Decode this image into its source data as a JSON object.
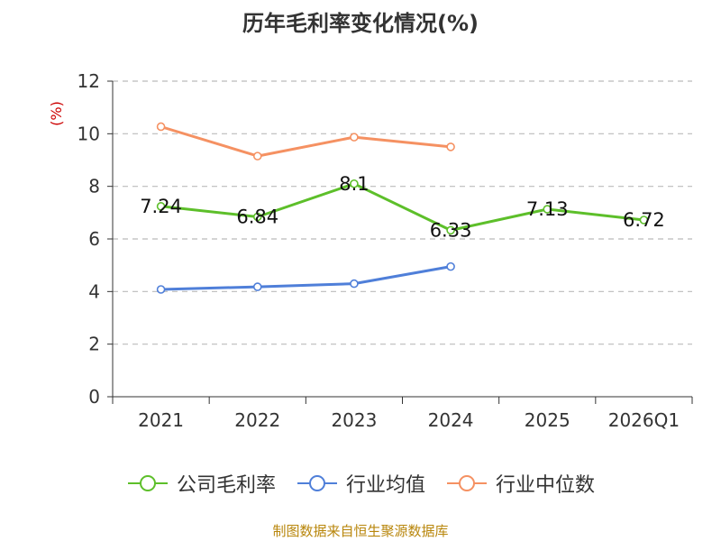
{
  "title": "历年毛利率变化情况(%)",
  "source": "制图数据来自恒生聚源数据库",
  "colors": {
    "company": "#5dbf2a",
    "industry_avg": "#4f7fd9",
    "industry_median": "#f59162",
    "axis": "#333333",
    "grid": "#bbbbbb",
    "unit": "#cc0000"
  },
  "chart_data": {
    "type": "line",
    "title": "历年毛利率变化情况(%)",
    "xlabel": "",
    "ylabel": "(%)",
    "categories": [
      "2021",
      "2022",
      "2023",
      "2024",
      "2025",
      "2026Q1"
    ],
    "ylim": [
      0,
      12
    ],
    "yticks": [
      0,
      2,
      4,
      6,
      8,
      10,
      12
    ],
    "grid": true,
    "legend_position": "bottom",
    "series": [
      {
        "name": "公司毛利率",
        "values": [
          7.24,
          6.84,
          8.1,
          6.33,
          7.13,
          6.72
        ],
        "labels": [
          "7.24",
          "6.84",
          "8.1",
          "6.33",
          "7.13",
          "6.72"
        ]
      },
      {
        "name": "行业均值",
        "values": [
          4.08,
          4.18,
          4.3,
          4.95,
          null,
          null
        ]
      },
      {
        "name": "行业中位数",
        "values": [
          10.27,
          9.15,
          9.87,
          9.5,
          null,
          null
        ]
      }
    ]
  }
}
